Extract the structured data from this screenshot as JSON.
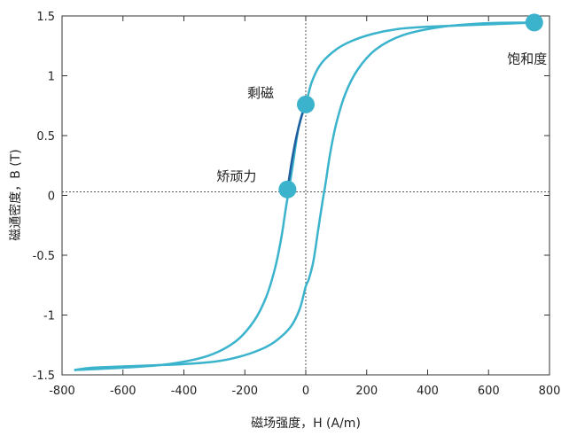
{
  "chart_data": {
    "type": "line",
    "title": "",
    "xlabel": "磁场强度，H (A/m)",
    "ylabel": "磁通密度，B (T)",
    "xlim": [
      -800,
      800
    ],
    "ylim": [
      -1.5,
      1.5
    ],
    "xticks": [
      -800,
      -600,
      -400,
      -200,
      0,
      200,
      400,
      600,
      800
    ],
    "yticks": [
      -1.5,
      -1,
      -0.5,
      0,
      0.5,
      1,
      1.5
    ],
    "xtick_labels": [
      "-800",
      "-600",
      "-400",
      "-200",
      "0",
      "200",
      "400",
      "600",
      "800"
    ],
    "ytick_labels": [
      "-1.5",
      "-1",
      "-0.5",
      "0",
      "0.5",
      "1",
      "1.5"
    ],
    "grid": false,
    "colors": {
      "curve": "#3bb3cc",
      "segment": "#1f5fa0",
      "point": "#3bb3cc",
      "zero_line": "#555555",
      "frame": "#333333"
    },
    "series": [
      {
        "x": [
          -760,
          -600,
          -450,
          -320,
          -230,
          -170,
          -130,
          -100,
          -80,
          -65,
          -55,
          -40,
          -25,
          -10,
          0,
          20,
          50,
          100,
          150,
          220,
          300,
          400,
          500,
          600,
          700,
          760
        ],
        "y": [
          -1.46,
          -1.44,
          -1.41,
          -1.34,
          -1.22,
          -1.05,
          -0.85,
          -0.6,
          -0.35,
          -0.1,
          0.05,
          0.3,
          0.55,
          0.7,
          0.76,
          0.95,
          1.1,
          1.22,
          1.29,
          1.35,
          1.39,
          1.41,
          1.42,
          1.43,
          1.44,
          1.445
        ]
      },
      {
        "x": [
          760,
          600,
          450,
          320,
          230,
          170,
          130,
          100,
          80,
          65,
          55,
          40,
          25,
          10,
          0,
          -20,
          -50,
          -100,
          -150,
          -220,
          -300,
          -400,
          -500,
          -600,
          -700,
          -760
        ],
        "y": [
          1.445,
          1.44,
          1.41,
          1.34,
          1.22,
          1.05,
          0.85,
          0.6,
          0.35,
          0.1,
          -0.05,
          -0.3,
          -0.55,
          -0.7,
          -0.76,
          -0.95,
          -1.1,
          -1.22,
          -1.29,
          -1.35,
          -1.39,
          -1.41,
          -1.42,
          -1.43,
          -1.44,
          -1.46
        ]
      }
    ],
    "highlight_segment": {
      "x": [
        -60,
        -45,
        -30,
        -15,
        0
      ],
      "y": [
        0.05,
        0.3,
        0.5,
        0.65,
        0.76
      ]
    },
    "reference_lines": {
      "x": 0,
      "y": 0.03
    },
    "annotations": [
      {
        "label": "饱和度",
        "x": 750,
        "y": 1.445
      },
      {
        "label": "剩磁",
        "x": 0,
        "y": 0.76
      },
      {
        "label": "矫顽力",
        "x": -60,
        "y": 0.05
      }
    ]
  }
}
